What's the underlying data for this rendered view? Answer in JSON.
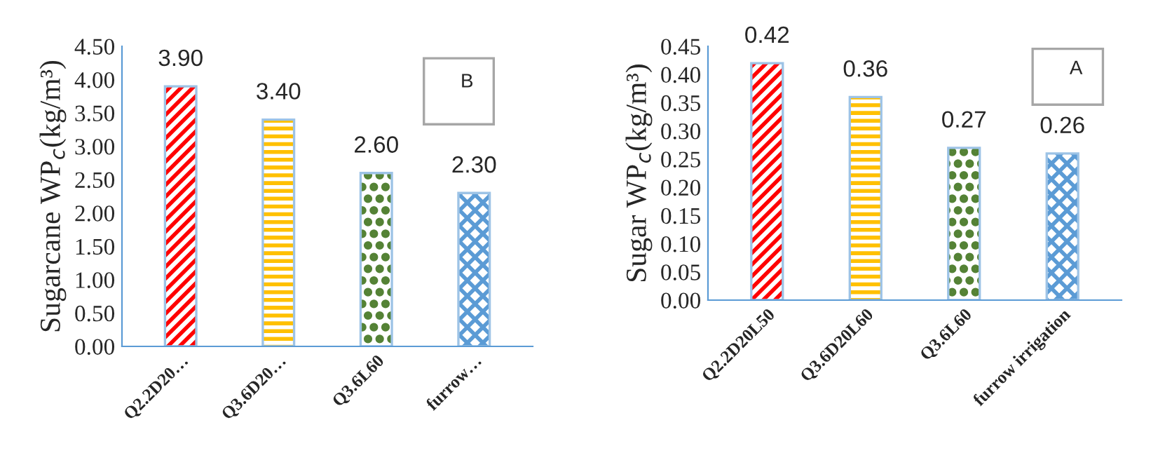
{
  "chart_data": [
    {
      "type": "bar",
      "ylabel": "Sugarcane WP$_{c}$(kg/m³)",
      "categories": [
        "Q2.2D20…",
        "Q3.6D20…",
        "Q3.6L60",
        "furrow…"
      ],
      "values": [
        3.9,
        3.4,
        2.6,
        2.3
      ],
      "value_labels": [
        "3.90",
        "3.40",
        "2.60",
        "2.30"
      ],
      "colors": [
        "#ff0000",
        "#ffc000",
        "#548235",
        "#5b9bd5"
      ],
      "ylim": [
        0,
        4.5
      ],
      "yticks": [
        {
          "value": 0,
          "label": "0.00"
        },
        {
          "value": 0.5,
          "label": "0.50"
        },
        {
          "value": 1,
          "label": "1.00"
        },
        {
          "value": 1.5,
          "label": "1.50"
        },
        {
          "value": 2,
          "label": "2.00"
        },
        {
          "value": 2.5,
          "label": "2.50"
        },
        {
          "value": 3,
          "label": "3.00"
        },
        {
          "value": 3.5,
          "label": "3.50"
        },
        {
          "value": 4,
          "label": "4.00"
        },
        {
          "value": 4.5,
          "label": "4.50"
        }
      ],
      "annotations": [
        "B"
      ],
      "grid": false,
      "legend": false
    },
    {
      "type": "bar",
      "ylabel": "Sugar WP$_{c}$(kg/m³)",
      "categories": [
        "Q2.2D20L50",
        "Q3.6D20L60",
        "Q3.6L60",
        "furrow irrigation"
      ],
      "values": [
        0.42,
        0.36,
        0.27,
        0.26
      ],
      "value_labels": [
        "0.42",
        "0.36",
        "0.27",
        "0.26"
      ],
      "colors": [
        "#ff0000",
        "#ffc000",
        "#548235",
        "#5b9bd5"
      ],
      "ylim": [
        0,
        0.45
      ],
      "yticks": [
        {
          "value": 0,
          "label": "0.00"
        },
        {
          "value": 0.05,
          "label": "0.05"
        },
        {
          "value": 0.1,
          "label": "0.10"
        },
        {
          "value": 0.15,
          "label": "0.15"
        },
        {
          "value": 0.2,
          "label": "0.20"
        },
        {
          "value": 0.25,
          "label": "0.25"
        },
        {
          "value": 0.3,
          "label": "0.30"
        },
        {
          "value": 0.35,
          "label": "0.35"
        },
        {
          "value": 0.4,
          "label": "0.40"
        },
        {
          "value": 0.45,
          "label": "0.45"
        }
      ],
      "annotations": [
        "A"
      ],
      "grid": false,
      "legend": false
    }
  ]
}
